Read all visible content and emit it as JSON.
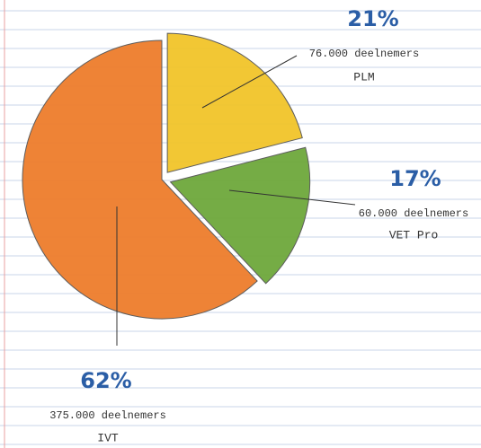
{
  "chart_data": {
    "type": "pie",
    "categories": [
      "PLM",
      "VET Pro",
      "IVT"
    ],
    "values": [
      21,
      17,
      62
    ],
    "value_labels": [
      "21%",
      "17%",
      "62%"
    ],
    "annotations": [
      "76.000 deelnemers",
      "60.000 deelnemers",
      "375.000 deelnemers"
    ],
    "colors": [
      "#f2c52a",
      "#6ea83c",
      "#ee7d2c"
    ]
  }
}
